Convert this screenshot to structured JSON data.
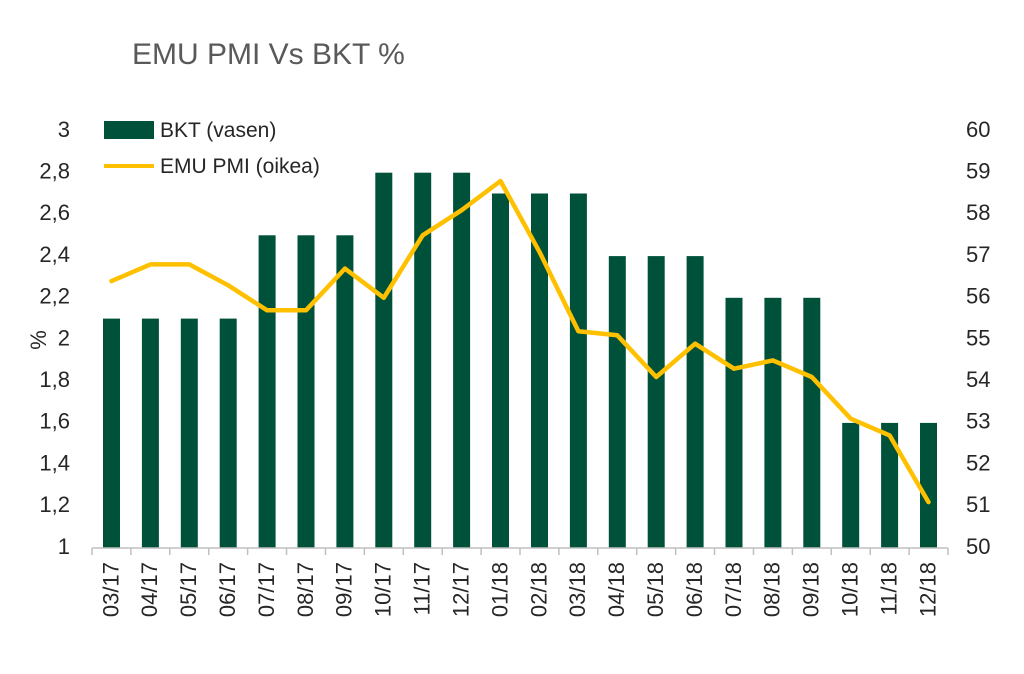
{
  "chart_data": {
    "type": "bar",
    "title": "EMU PMI Vs BKT %",
    "ylabel": "%",
    "categories": [
      "03/17",
      "04/17",
      "05/17",
      "06/17",
      "07/17",
      "08/17",
      "09/17",
      "10/17",
      "11/17",
      "12/17",
      "01/18",
      "02/18",
      "03/18",
      "04/18",
      "05/18",
      "06/18",
      "07/18",
      "08/18",
      "09/18",
      "10/18",
      "11/18",
      "12/18"
    ],
    "series": [
      {
        "name": "BKT (vasen)",
        "type": "bar",
        "axis": "left",
        "color": "#00513A",
        "values": [
          2.1,
          2.1,
          2.1,
          2.1,
          2.5,
          2.5,
          2.5,
          2.8,
          2.8,
          2.8,
          2.7,
          2.7,
          2.7,
          2.4,
          2.4,
          2.4,
          2.2,
          2.2,
          2.2,
          1.6,
          1.6,
          1.6
        ]
      },
      {
        "name": "EMU PMI (oikea)",
        "type": "line",
        "axis": "right",
        "color": "#FFC000",
        "values": [
          56.4,
          56.8,
          56.8,
          56.3,
          55.7,
          55.7,
          56.7,
          56.0,
          57.5,
          58.1,
          58.8,
          57.1,
          55.2,
          55.1,
          54.1,
          54.9,
          54.3,
          54.5,
          54.1,
          53.1,
          52.7,
          51.1
        ]
      }
    ],
    "ylim_left": [
      1,
      3
    ],
    "yticks_left": [
      "1",
      "1,2",
      "1,4",
      "1,6",
      "1,8",
      "2",
      "2,2",
      "2,4",
      "2,6",
      "2,8",
      "3"
    ],
    "ylim_right": [
      50,
      60
    ],
    "yticks_right": [
      "50",
      "51",
      "52",
      "53",
      "54",
      "55",
      "56",
      "57",
      "58",
      "59",
      "60"
    ],
    "legend_position": "top-left",
    "grid": false
  }
}
